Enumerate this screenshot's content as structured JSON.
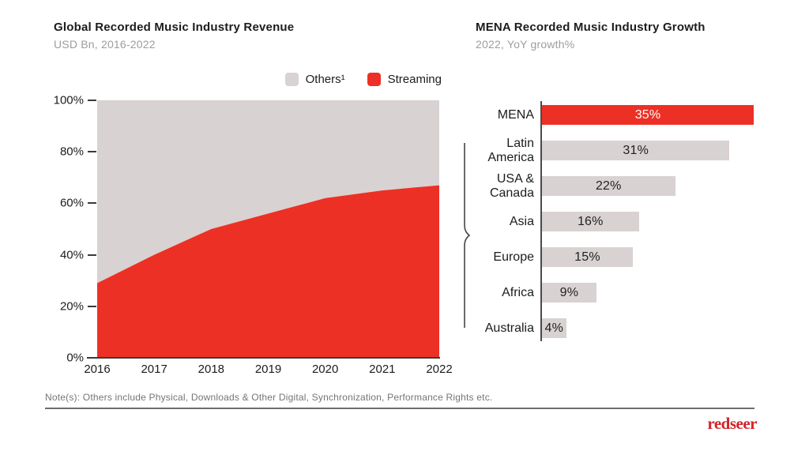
{
  "header": {
    "left": {
      "title": "Global Recorded Music Industry Revenue",
      "subtitle": "USD Bn, 2016-2022"
    },
    "right": {
      "title": "MENA Recorded Music Industry Growth",
      "subtitle": "2022, YoY growth%"
    }
  },
  "legend": [
    {
      "label": "Others¹",
      "color": "#d9d2d2"
    },
    {
      "label": "Streaming",
      "color": "#ed3025"
    }
  ],
  "chart_data": [
    {
      "type": "area",
      "title": "Global Recorded Music Industry Revenue",
      "subtitle": "USD Bn, 2016-2022",
      "stacked_to_100_percent": true,
      "x": [
        "2016",
        "2017",
        "2018",
        "2019",
        "2020",
        "2021",
        "2022"
      ],
      "series": [
        {
          "name": "Streaming",
          "color": "#ed3025",
          "values": [
            29,
            40,
            50,
            56,
            62,
            65,
            67
          ]
        },
        {
          "name": "Others¹",
          "color": "#d9d2d2",
          "values": [
            71,
            60,
            50,
            44,
            38,
            35,
            33
          ]
        }
      ],
      "ylim": [
        0,
        100
      ],
      "yticks": [
        "100%",
        "80%",
        "60%",
        "40%",
        "20%",
        "0%"
      ],
      "grid": false,
      "legend_position": "top-right"
    },
    {
      "type": "bar",
      "orientation": "horizontal",
      "title": "MENA Recorded Music Industry Growth",
      "subtitle": "2022, YoY growth%",
      "categories": [
        "MENA",
        "Latin\nAmerica",
        "USA &\nCanada",
        "Asia",
        "Europe",
        "Africa",
        "Australia"
      ],
      "values": [
        35,
        31,
        22,
        16,
        15,
        9,
        4
      ],
      "value_labels": [
        "35%",
        "31%",
        "22%",
        "16%",
        "15%",
        "9%",
        "4%"
      ],
      "xlim": [
        0,
        35
      ],
      "bar_color": "#d9d2d2",
      "value_label_color": "#222222",
      "highlight_index": 0,
      "highlight_bar_color": "#ed3025",
      "highlight_value_label_color": "#ffffff",
      "grid": false
    }
  ],
  "note": "Note(s): Others include Physical, Downloads & Other Digital, Synchronization, Performance Rights etc.",
  "logo": "redseer",
  "colors": {
    "streaming_red": "#ed3025",
    "others_gray": "#d9d2d2",
    "axis": "#3a3a3a",
    "logo_red": "#d2232a"
  }
}
